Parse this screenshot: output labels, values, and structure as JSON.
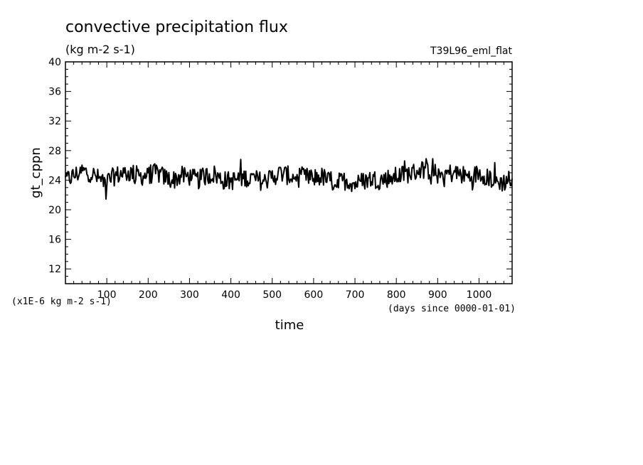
{
  "chart_data": {
    "type": "line",
    "title": "convective precipitation flux",
    "subtitle": "(kg m-2 s-1)",
    "run_label": "T39L96_eml_flat",
    "ylabel": "gt_cppn",
    "xlabel": "time",
    "y_unit_note": "(x1E-6 kg m-2 s-1)",
    "x_unit_note": "(days since 0000-01-01)",
    "xlim": [
      0,
      1080
    ],
    "ylim": [
      10,
      40
    ],
    "x_ticks": [
      100,
      200,
      300,
      400,
      500,
      600,
      700,
      800,
      900,
      1000
    ],
    "y_ticks": [
      12,
      16,
      20,
      24,
      28,
      32,
      36,
      40
    ],
    "grid": false,
    "series": [
      {
        "x": [
          0,
          20,
          40,
          60,
          80,
          100,
          120,
          140,
          160,
          180,
          200,
          220,
          240,
          260,
          280,
          300,
          320,
          340,
          360,
          380,
          400,
          420,
          440,
          460,
          480,
          500,
          520,
          540,
          560,
          580,
          600,
          620,
          640,
          660,
          680,
          700,
          720,
          740,
          760,
          780,
          800,
          820,
          840,
          860,
          880,
          900,
          920,
          940,
          960,
          980,
          1000,
          1020,
          1040,
          1060,
          1080
        ],
        "values": [
          24.0,
          24.6,
          25.2,
          25.0,
          24.2,
          23.8,
          24.6,
          24.9,
          25.0,
          24.5,
          24.7,
          25.0,
          24.4,
          24.0,
          24.6,
          24.5,
          24.0,
          24.6,
          24.8,
          24.0,
          23.9,
          24.2,
          24.4,
          24.1,
          23.8,
          24.5,
          24.9,
          24.6,
          24.3,
          24.4,
          24.3,
          24.5,
          23.8,
          23.7,
          24.0,
          23.5,
          23.9,
          24.2,
          24.0,
          24.3,
          24.5,
          24.8,
          25.0,
          25.5,
          25.3,
          24.8,
          24.9,
          25.0,
          24.7,
          24.4,
          25.0,
          24.5,
          23.8,
          23.7,
          24.2
        ]
      }
    ]
  }
}
